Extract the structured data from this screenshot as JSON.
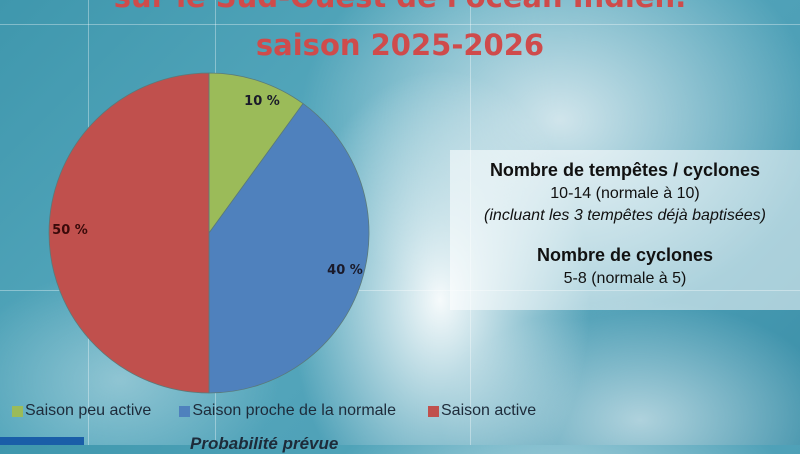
{
  "title_line1": "sur le Sud-Ouest de l'océan Indien.",
  "title_line2": "saison 2025-2026",
  "info": {
    "storms_heading": "Nombre de tempêtes / cyclones",
    "storms_value": "10-14 (normale à 10)",
    "storms_note": "(incluant les 3 tempêtes déjà baptisées)",
    "cyclones_heading": "Nombre de cyclones",
    "cyclones_value": "5-8 (normale à 5)"
  },
  "caption": "Probabilité prévue",
  "chart_data": {
    "type": "pie",
    "categories": [
      "Saison peu active",
      "Saison proche de la normale",
      "Saison active"
    ],
    "values": [
      10,
      40,
      50
    ],
    "labels": [
      "10 %",
      "40 %",
      "50 %"
    ],
    "colors": [
      "#9bbb59",
      "#4f81bd",
      "#c0504d"
    ],
    "start": "12 o'clock, clockwise",
    "legend": "bottom"
  }
}
